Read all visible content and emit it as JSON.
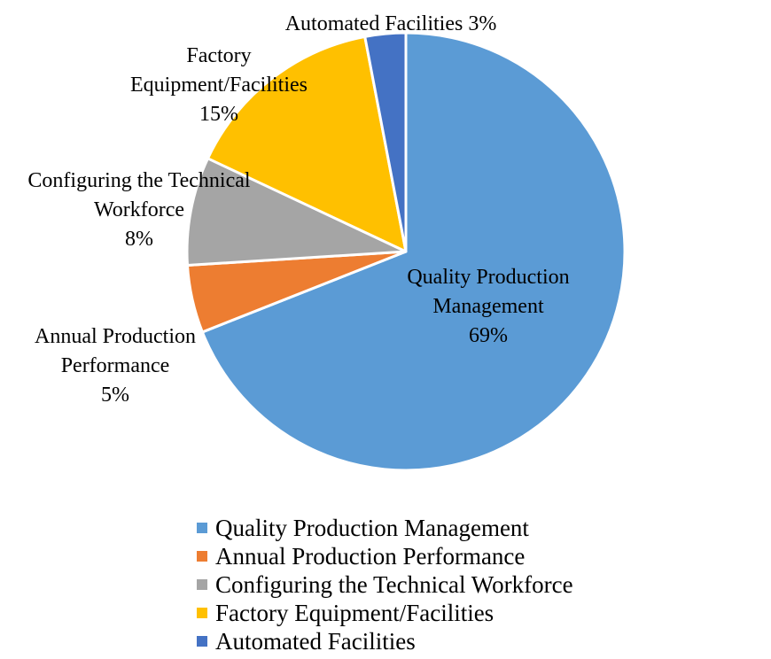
{
  "chart_data": {
    "type": "pie",
    "title": "",
    "categories": [
      "Quality Production Management",
      "Annual Production Performance",
      "Configuring the Technical Workforce",
      "Factory Equipment/Facilities",
      "Automated Facilities"
    ],
    "values": [
      69,
      5,
      8,
      15,
      3
    ],
    "colors": [
      "#5B9BD5",
      "#ED7D31",
      "#A5A5A5",
      "#FFC000",
      "#4472C4"
    ],
    "data_labels": [
      [
        "Quality Production",
        "Management",
        "69%"
      ],
      [
        "Annual Production",
        "Performance",
        "5%"
      ],
      [
        "Configuring the Technical",
        "Workforce",
        "8%"
      ],
      [
        "Factory",
        "Equipment/Facilities",
        "15%"
      ],
      [
        "Automated Facilities 3%"
      ]
    ],
    "legend_position": "bottom"
  }
}
